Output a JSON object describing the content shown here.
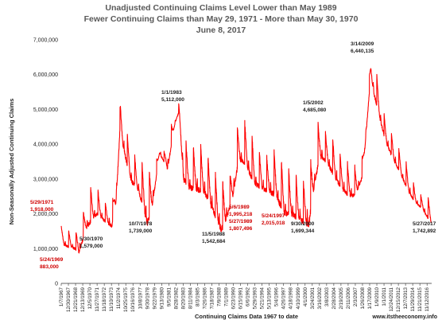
{
  "chart_data": {
    "type": "line",
    "title": "Unadjusted Continuing Claims Level Lower than May 1989",
    "subtitle": "Fewer Continuing Claims than May 29, 1971 - More than May 30, 1970",
    "date_line": "June 8, 2017",
    "xlabel": "Continuing Claims Data 1967 to date",
    "ylabel": "Non-Seasonally Adjusted Continuing Claims",
    "source": "www.itstheeconomy.info",
    "ylim": [
      0,
      7000000
    ],
    "yticks": [
      0,
      1000000,
      2000000,
      3000000,
      4000000,
      5000000,
      6000000,
      7000000
    ],
    "ytick_labels": [
      "0",
      "1,000,000",
      "2,000,000",
      "3,000,000",
      "4,000,000",
      "5,000,000",
      "6,000,000",
      "7,000,000"
    ],
    "xlim": [
      1967.0,
      2017.5
    ],
    "xtick_labels": [
      "1/7/1967",
      "12/30/1967",
      "12/21/1968",
      "12/13/1969",
      "12/5/1970",
      "11/27/1971",
      "11/18/1972",
      "11/10/1973",
      "11/2/1974",
      "10/25/1975",
      "10/16/1976",
      "10/8/1977",
      "9/30/1978",
      "9/22/1979",
      "9/13/1980",
      "9/5/1981",
      "8/28/1982",
      "8/20/1983",
      "8/11/1984",
      "8/3/1985",
      "7/26/1986",
      "7/18/1987",
      "7/9/1988",
      "7/1/1989",
      "6/23/1990",
      "6/15/1991",
      "6/6/1992",
      "5/29/1993",
      "5/21/1994",
      "5/13/1995",
      "5/4/1996",
      "4/26/1997",
      "4/18/1998",
      "4/10/1999",
      "4/1/2000",
      "3/24/2001",
      "3/16/2002",
      "3/8/2003",
      "2/28/2004",
      "2/19/2005",
      "2/11/2006",
      "2/3/2007",
      "1/26/2008",
      "1/17/2009",
      "1/9/2010",
      "1/1/2011",
      "12/24/2011",
      "12/15/2012",
      "12/7/2013",
      "11/29/2014",
      "11/21/2015",
      "11/12/2016"
    ],
    "series": [
      {
        "color": "#ff0000",
        "anchors": [
          [
            1967.0,
            1150000
          ],
          [
            1968.0,
            1050000
          ],
          [
            1968.9,
            1000000
          ],
          [
            1969.4,
            883000
          ],
          [
            1970.4,
            1579000
          ],
          [
            1971.4,
            1918000
          ],
          [
            1972.0,
            2000000
          ],
          [
            1972.9,
            1800000
          ],
          [
            1973.9,
            1650000
          ],
          [
            1974.5,
            2400000
          ],
          [
            1975.0,
            4400000
          ],
          [
            1975.7,
            3700000
          ],
          [
            1976.5,
            2950000
          ],
          [
            1977.5,
            2700000
          ],
          [
            1978.77,
            1739000
          ],
          [
            1979.5,
            2350000
          ],
          [
            1980.4,
            3750000
          ],
          [
            1981.5,
            3300000
          ],
          [
            1982.5,
            4600000
          ],
          [
            1983.0,
            4900000
          ],
          [
            1983.7,
            3000000
          ],
          [
            1984.5,
            2750000
          ],
          [
            1985.5,
            2700000
          ],
          [
            1986.5,
            2650000
          ],
          [
            1987.5,
            2200000
          ],
          [
            1988.84,
            1542684
          ],
          [
            1989.4,
            1807496
          ],
          [
            1990.3,
            2400000
          ],
          [
            1991.2,
            3550000
          ],
          [
            1992.2,
            3450000
          ],
          [
            1993.2,
            2900000
          ],
          [
            1994.2,
            2750000
          ],
          [
            1995.2,
            2650000
          ],
          [
            1996.2,
            2550000
          ],
          [
            1997.4,
            2015018
          ],
          [
            1998.4,
            2000000
          ],
          [
            1999.4,
            1850000
          ],
          [
            2000.75,
            1699344
          ],
          [
            2001.3,
            2550000
          ],
          [
            2002.2,
            3650000
          ],
          [
            2003.2,
            3500000
          ],
          [
            2004.2,
            3100000
          ],
          [
            2005.2,
            2750000
          ],
          [
            2006.2,
            2500000
          ],
          [
            2007.2,
            2550000
          ],
          [
            2008.1,
            3100000
          ],
          [
            2009.2,
            6000000
          ],
          [
            2009.7,
            5400000
          ],
          [
            2010.2,
            4950000
          ],
          [
            2011.2,
            4100000
          ],
          [
            2012.2,
            3600000
          ],
          [
            2013.2,
            3200000
          ],
          [
            2014.2,
            2700000
          ],
          [
            2015.2,
            2350000
          ],
          [
            2016.2,
            2150000
          ],
          [
            2017.4,
            1742892
          ]
        ],
        "peaks": [
          [
            1967.05,
            1650000
          ],
          [
            1968.05,
            1550000
          ],
          [
            1969.05,
            1500000
          ],
          [
            1970.1,
            2150000
          ],
          [
            1971.1,
            2850000
          ],
          [
            1972.05,
            2700000
          ],
          [
            1973.05,
            2350000
          ],
          [
            1974.05,
            2450000
          ],
          [
            1975.08,
            5250000
          ],
          [
            1976.05,
            4300000
          ],
          [
            1977.05,
            3700000
          ],
          [
            1978.05,
            3500000
          ],
          [
            1979.08,
            3300000
          ],
          [
            1980.05,
            3600000
          ],
          [
            1980.6,
            4050000
          ],
          [
            1981.05,
            3800000
          ],
          [
            1982.05,
            4600000
          ],
          [
            1982.7,
            4950000
          ],
          [
            1983.0,
            5200000
          ],
          [
            1984.05,
            4100000
          ],
          [
            1985.05,
            4000000
          ],
          [
            1986.05,
            4000000
          ],
          [
            1987.05,
            3700000
          ],
          [
            1988.05,
            3200000
          ],
          [
            1989.05,
            3000000
          ],
          [
            1990.05,
            3200000
          ],
          [
            1991.05,
            4600000
          ],
          [
            1992.05,
            4700000
          ],
          [
            1993.05,
            4300000
          ],
          [
            1994.05,
            3800000
          ],
          [
            1995.05,
            3700000
          ],
          [
            1996.05,
            3850000
          ],
          [
            1997.05,
            3600000
          ],
          [
            1998.05,
            3300000
          ],
          [
            1999.05,
            3200000
          ],
          [
            2000.05,
            3000000
          ],
          [
            2001.05,
            3600000
          ],
          [
            2002.05,
            4685080
          ],
          [
            2003.05,
            4400000
          ],
          [
            2004.05,
            4200000
          ],
          [
            2005.05,
            3750000
          ],
          [
            2006.05,
            3500000
          ],
          [
            2007.05,
            3400000
          ],
          [
            2008.05,
            3700000
          ],
          [
            2009.2,
            6440135
          ],
          [
            2010.05,
            6050000
          ],
          [
            2011.05,
            4850000
          ],
          [
            2012.05,
            4350000
          ],
          [
            2013.05,
            3900000
          ],
          [
            2014.05,
            3500000
          ],
          [
            2015.05,
            2900000
          ],
          [
            2016.05,
            2550000
          ],
          [
            2017.05,
            2500000
          ]
        ]
      }
    ],
    "annotations": [
      {
        "line1": "5/24/1969",
        "line2": "883,000",
        "color": "#d00000"
      },
      {
        "line1": "5/29/1971",
        "line2": "1,918,000",
        "color": "#d00000"
      },
      {
        "line1": "5/30/1970",
        "line2": "1,579,000",
        "color": "#222222"
      },
      {
        "line1": "10/7/1978",
        "line2": "1,739,000",
        "color": "#222222"
      },
      {
        "line1": "1/1/1983",
        "line2": "5,112,000",
        "color": "#222222"
      },
      {
        "line1": "11/5/1988",
        "line2": "1,542,684",
        "color": "#222222"
      },
      {
        "line1": "5/6/1989",
        "line2": "1,995,218",
        "line3": "5/27/1989",
        "line4": "1,807,496",
        "color": "#d00000"
      },
      {
        "line1": "5/24/1997",
        "line2": "2,015,018",
        "color": "#d00000"
      },
      {
        "line1": "9/30/2000",
        "line2": "1,699,344",
        "color": "#222222"
      },
      {
        "line1": "1/5/2002",
        "line2": "4,685,080",
        "color": "#222222"
      },
      {
        "line1": "3/14/2009",
        "line2": "6,440,135",
        "color": "#222222"
      },
      {
        "line1": "5/27/2017",
        "line2": "1,742,892",
        "color": "#222222"
      }
    ],
    "grid": false,
    "legend": "none"
  }
}
